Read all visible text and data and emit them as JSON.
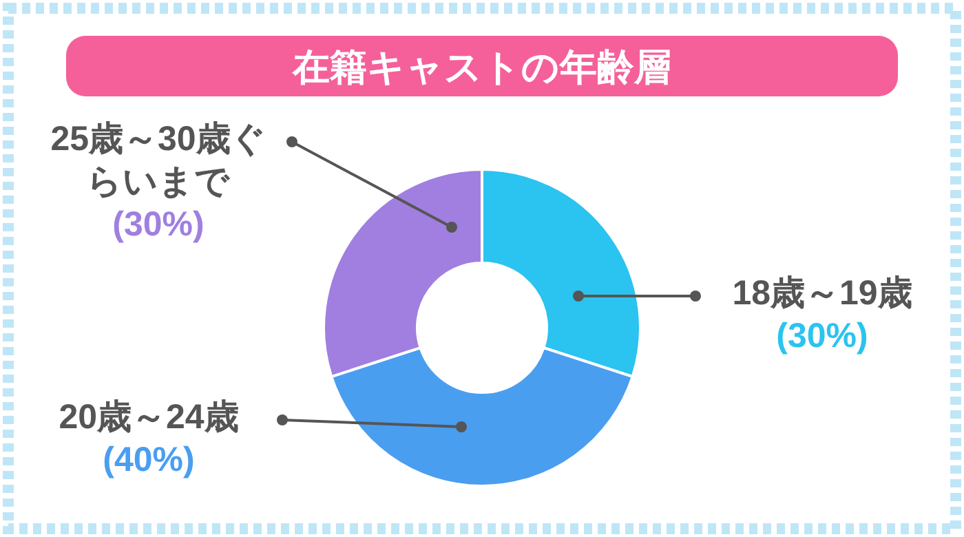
{
  "chart_data": {
    "type": "donut",
    "title": "在籍キャストの年齢層",
    "categories": [
      "18歳～19歳",
      "20歳～24歳",
      "25歳～30歳ぐらいまで"
    ],
    "values": [
      30,
      40,
      30
    ],
    "colors": [
      "#2bc3ef",
      "#4a9ef0",
      "#a07fe0"
    ],
    "value_labels": [
      "(30%)",
      "(40%)",
      "(30%)"
    ]
  }
}
